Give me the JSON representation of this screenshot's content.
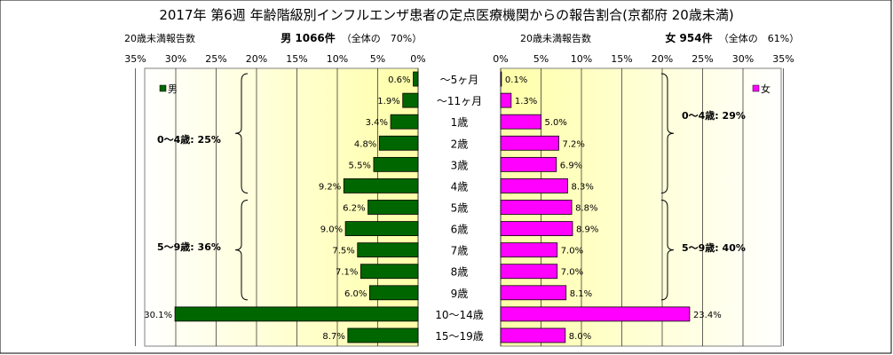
{
  "title": "2017年 第6週 年齢階級別インフルエンザ患者の定点医療機関からの報告割合(京都府 20歳未満)",
  "left_header": {
    "caption": "20歳未満報告数",
    "summary": "男 1066件",
    "share": "（全体の　70%）"
  },
  "right_header": {
    "caption": "20歳未満報告数",
    "summary": "女 954件",
    "share": "（全体の　61%）"
  },
  "colors": {
    "male_bar": "#006600",
    "female_bar": "#ff00ff",
    "plot_bg_center": "#ffffa8",
    "plot_bg_edge": "#ffffff",
    "grid": "#000000"
  },
  "chart_data": [
    {
      "type": "bar",
      "orientation": "horizontal",
      "direction": "leftward",
      "series": [
        {
          "name": "男",
          "values": [
            0.6,
            1.9,
            3.4,
            4.8,
            5.5,
            9.2,
            6.2,
            9.0,
            7.5,
            7.1,
            6.0,
            30.1,
            8.7
          ]
        }
      ],
      "value_labels": [
        "0.6%",
        "1.9%",
        "3.4%",
        "4.8%",
        "5.5%",
        "9.2%",
        "6.2%",
        "9.0%",
        "7.5%",
        "7.1%",
        "6.0%",
        "30.1%",
        "8.7%"
      ],
      "xlim": [
        0,
        35
      ],
      "xticks": [
        "35%",
        "30%",
        "25%",
        "20%",
        "15%",
        "10%",
        "5%",
        "0%"
      ],
      "grid": true,
      "legend": "top-left",
      "brace_labels": [
        "0～4歳: 25%",
        "5～9歳: 36%"
      ]
    },
    {
      "type": "bar",
      "orientation": "horizontal",
      "direction": "rightward",
      "series": [
        {
          "name": "女",
          "values": [
            0.1,
            1.3,
            5.0,
            7.2,
            6.9,
            8.3,
            8.8,
            8.9,
            7.0,
            7.0,
            8.1,
            23.4,
            8.0
          ]
        }
      ],
      "value_labels": [
        "0.1%",
        "1.3%",
        "5.0%",
        "7.2%",
        "6.9%",
        "8.3%",
        "8.8%",
        "8.9%",
        "7.0%",
        "7.0%",
        "8.1%",
        "23.4%",
        "8.0%"
      ],
      "xlim": [
        0,
        35
      ],
      "xticks": [
        "0%",
        "5%",
        "10%",
        "15%",
        "20%",
        "25%",
        "30%",
        "35%"
      ],
      "grid": true,
      "legend": "top-right",
      "brace_labels": [
        "0～4歳: 29%",
        "5～9歳: 40%"
      ]
    }
  ],
  "categories": [
    "～5ヶ月",
    "～11ヶ月",
    "1歳",
    "2歳",
    "3歳",
    "4歳",
    "5歳",
    "6歳",
    "7歳",
    "8歳",
    "9歳",
    "10～14歳",
    "15～19歳"
  ]
}
